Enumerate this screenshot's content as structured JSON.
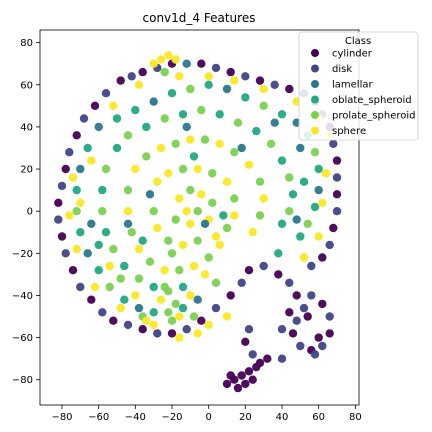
{
  "chart_data": {
    "type": "scatter",
    "title": "conv1d_4 Features",
    "xlabel": "",
    "ylabel": "",
    "xlim": [
      -92,
      82
    ],
    "ylim": [
      -92,
      86
    ],
    "xticks": [
      -80,
      -60,
      -40,
      -20,
      0,
      20,
      40,
      60,
      80
    ],
    "yticks": [
      -80,
      -60,
      -40,
      -20,
      0,
      20,
      40,
      60,
      80
    ],
    "grid": false,
    "legend": {
      "title": "Class",
      "placement": "top-right"
    },
    "series": [
      {
        "name": "cylinder",
        "color": "#440154"
      },
      {
        "name": "disk",
        "color": "#414487"
      },
      {
        "name": "lamellar",
        "color": "#2a788e"
      },
      {
        "name": "oblate_spheroid",
        "color": "#22a884"
      },
      {
        "name": "prolate_spheroid",
        "color": "#7ad151"
      },
      {
        "name": "sphere",
        "color": "#fde725"
      }
    ],
    "points": [
      [
        -48,
        62,
        0
      ],
      [
        -42,
        64,
        1
      ],
      [
        -36,
        66,
        0
      ],
      [
        -28,
        68,
        1
      ],
      [
        -20,
        70,
        0
      ],
      [
        -12,
        70,
        2
      ],
      [
        -4,
        70,
        0
      ],
      [
        4,
        68,
        1
      ],
      [
        12,
        66,
        0
      ],
      [
        20,
        64,
        1
      ],
      [
        28,
        62,
        0
      ],
      [
        36,
        60,
        1
      ],
      [
        44,
        58,
        0
      ],
      [
        52,
        56,
        1
      ],
      [
        58,
        52,
        0
      ],
      [
        62,
        46,
        1
      ],
      [
        66,
        40,
        0
      ],
      [
        68,
        32,
        1
      ],
      [
        70,
        24,
        0
      ],
      [
        70,
        16,
        1
      ],
      [
        70,
        8,
        0
      ],
      [
        70,
        0,
        1
      ],
      [
        68,
        -8,
        0
      ],
      [
        66,
        -16,
        1
      ],
      [
        62,
        -22,
        0
      ],
      [
        56,
        -26,
        1
      ],
      [
        -56,
        56,
        1
      ],
      [
        -62,
        50,
        0
      ],
      [
        -68,
        44,
        1
      ],
      [
        -72,
        36,
        0
      ],
      [
        -76,
        28,
        1
      ],
      [
        -78,
        20,
        0
      ],
      [
        -80,
        12,
        1
      ],
      [
        -82,
        4,
        0
      ],
      [
        -82,
        -4,
        1
      ],
      [
        -80,
        -12,
        0
      ],
      [
        -78,
        -20,
        1
      ],
      [
        -74,
        -28,
        0
      ],
      [
        -70,
        -36,
        1
      ],
      [
        -64,
        -42,
        0
      ],
      [
        -58,
        -48,
        1
      ],
      [
        -52,
        -52,
        0
      ],
      [
        -44,
        -54,
        1
      ],
      [
        -36,
        -56,
        0
      ],
      [
        -28,
        -58,
        1
      ],
      [
        -20,
        -58,
        0
      ],
      [
        -12,
        -56,
        1
      ],
      [
        -4,
        -52,
        0
      ],
      [
        4,
        -46,
        1
      ],
      [
        12,
        -40,
        0
      ],
      [
        18,
        -34,
        1
      ],
      [
        22,
        -28,
        0
      ],
      [
        30,
        -26,
        1
      ],
      [
        38,
        -30,
        0
      ],
      [
        44,
        -34,
        1
      ],
      [
        48,
        -40,
        0
      ],
      [
        56,
        -40,
        1
      ],
      [
        62,
        -44,
        0
      ],
      [
        66,
        -50,
        1
      ],
      [
        66,
        -58,
        0
      ],
      [
        62,
        -64,
        1
      ],
      [
        56,
        -66,
        0
      ],
      [
        50,
        -64,
        1
      ],
      [
        46,
        -58,
        0
      ],
      [
        48,
        -52,
        1
      ],
      [
        54,
        -50,
        0
      ],
      [
        40,
        -70,
        1
      ],
      [
        32,
        -70,
        0
      ],
      [
        24,
        -68,
        1
      ],
      [
        20,
        -62,
        0
      ],
      [
        22,
        -56,
        1
      ],
      [
        58,
        -68,
        1
      ],
      [
        60,
        -60,
        0
      ],
      [
        52,
        -46,
        1
      ],
      [
        44,
        -48,
        0
      ],
      [
        40,
        -56,
        1
      ],
      [
        10,
        -82,
        0
      ],
      [
        14,
        -80,
        0
      ],
      [
        18,
        -78,
        0
      ],
      [
        22,
        -76,
        0
      ],
      [
        26,
        -74,
        0
      ],
      [
        16,
        -84,
        0
      ],
      [
        12,
        -78,
        0
      ],
      [
        20,
        -82,
        0
      ],
      [
        28,
        -72,
        0
      ],
      [
        24,
        -80,
        0
      ],
      [
        -60,
        40,
        2
      ],
      [
        -50,
        44,
        3
      ],
      [
        -40,
        48,
        3
      ],
      [
        -30,
        52,
        2
      ],
      [
        -20,
        56,
        3
      ],
      [
        -10,
        58,
        4
      ],
      [
        0,
        60,
        3
      ],
      [
        10,
        58,
        2
      ],
      [
        20,
        54,
        3
      ],
      [
        30,
        50,
        4
      ],
      [
        40,
        46,
        3
      ],
      [
        48,
        42,
        2
      ],
      [
        54,
        36,
        3
      ],
      [
        58,
        28,
        4
      ],
      [
        60,
        20,
        3
      ],
      [
        60,
        10,
        2
      ],
      [
        58,
        2,
        3
      ],
      [
        54,
        -6,
        4
      ],
      [
        50,
        -12,
        3
      ],
      [
        -66,
        30,
        3
      ],
      [
        -70,
        20,
        2
      ],
      [
        -72,
        10,
        3
      ],
      [
        -72,
        0,
        4
      ],
      [
        -70,
        -10,
        3
      ],
      [
        -66,
        -20,
        2
      ],
      [
        -60,
        -28,
        3
      ],
      [
        -54,
        -36,
        4
      ],
      [
        -46,
        -42,
        3
      ],
      [
        -38,
        -46,
        2
      ],
      [
        -30,
        -48,
        3
      ],
      [
        -22,
        -48,
        4
      ],
      [
        -14,
        -46,
        3
      ],
      [
        -6,
        -42,
        2
      ],
      [
        -50,
        30,
        3
      ],
      [
        -44,
        36,
        4
      ],
      [
        -34,
        40,
        3
      ],
      [
        -24,
        44,
        4
      ],
      [
        -14,
        46,
        3
      ],
      [
        -4,
        48,
        4
      ],
      [
        6,
        46,
        3
      ],
      [
        16,
        42,
        4
      ],
      [
        26,
        38,
        3
      ],
      [
        34,
        32,
        4
      ],
      [
        40,
        24,
        3
      ],
      [
        44,
        16,
        4
      ],
      [
        46,
        8,
        3
      ],
      [
        44,
        0,
        4
      ],
      [
        40,
        -6,
        3
      ],
      [
        -56,
        20,
        4
      ],
      [
        -58,
        10,
        3
      ],
      [
        -58,
        0,
        4
      ],
      [
        -56,
        -10,
        3
      ],
      [
        -52,
        -18,
        4
      ],
      [
        -46,
        -26,
        3
      ],
      [
        -38,
        -32,
        4
      ],
      [
        -30,
        -36,
        3
      ],
      [
        -22,
        -38,
        4
      ],
      [
        -14,
        -36,
        3
      ],
      [
        -40,
        20,
        5
      ],
      [
        -34,
        26,
        4
      ],
      [
        -26,
        30,
        5
      ],
      [
        -18,
        32,
        4
      ],
      [
        -10,
        34,
        5
      ],
      [
        -2,
        34,
        4
      ],
      [
        6,
        32,
        5
      ],
      [
        14,
        28,
        4
      ],
      [
        22,
        22,
        5
      ],
      [
        28,
        14,
        4
      ],
      [
        30,
        6,
        5
      ],
      [
        28,
        -2,
        4
      ],
      [
        24,
        -10,
        5
      ],
      [
        -44,
        10,
        4
      ],
      [
        -44,
        0,
        5
      ],
      [
        -42,
        -10,
        4
      ],
      [
        -38,
        -18,
        5
      ],
      [
        -32,
        -24,
        4
      ],
      [
        -24,
        -28,
        5
      ],
      [
        -16,
        -28,
        4
      ],
      [
        -8,
        -26,
        5
      ],
      [
        0,
        -22,
        4
      ],
      [
        6,
        -16,
        5
      ],
      [
        -28,
        14,
        5
      ],
      [
        -22,
        18,
        5
      ],
      [
        -14,
        20,
        4
      ],
      [
        -6,
        20,
        5
      ],
      [
        2,
        18,
        4
      ],
      [
        10,
        14,
        5
      ],
      [
        14,
        6,
        4
      ],
      [
        14,
        -2,
        5
      ],
      [
        10,
        -8,
        4
      ],
      [
        4,
        -12,
        5
      ],
      [
        -30,
        0,
        4
      ],
      [
        -28,
        -8,
        5
      ],
      [
        -22,
        -14,
        4
      ],
      [
        -14,
        -16,
        5
      ],
      [
        -6,
        -14,
        4
      ],
      [
        -16,
        6,
        5
      ],
      [
        -10,
        10,
        4
      ],
      [
        -4,
        8,
        5
      ],
      [
        2,
        4,
        4
      ],
      [
        0,
        -4,
        5
      ],
      [
        -18,
        -4,
        4
      ],
      [
        -10,
        -6,
        5
      ],
      [
        -6,
        0,
        4
      ],
      [
        -12,
        0,
        5
      ],
      [
        -20,
        -20,
        4
      ],
      [
        -2,
        -30,
        5
      ],
      [
        4,
        -34,
        4
      ],
      [
        -10,
        -40,
        5
      ],
      [
        -18,
        -44,
        4
      ],
      [
        -26,
        -42,
        5
      ],
      [
        -24,
        -36,
        4
      ],
      [
        -16,
        -50,
        5
      ],
      [
        -8,
        -50,
        4
      ],
      [
        0,
        -54,
        5
      ],
      [
        -20,
        -52,
        4
      ],
      [
        -30,
        -54,
        5
      ],
      [
        -36,
        -50,
        4
      ],
      [
        -40,
        -40,
        5
      ],
      [
        -48,
        -32,
        4
      ],
      [
        -54,
        -26,
        5
      ],
      [
        -26,
        72,
        5
      ],
      [
        -22,
        74,
        5
      ],
      [
        -18,
        72,
        5
      ],
      [
        -30,
        70,
        5
      ],
      [
        -24,
        66,
        4
      ],
      [
        -16,
        64,
        5
      ],
      [
        0,
        64,
        5
      ],
      [
        14,
        62,
        5
      ],
      [
        30,
        58,
        5
      ],
      [
        48,
        52,
        5
      ],
      [
        60,
        44,
        5
      ],
      [
        66,
        36,
        5
      ],
      [
        64,
        18,
        5
      ],
      [
        62,
        4,
        5
      ],
      [
        60,
        -12,
        5
      ],
      [
        52,
        -22,
        5
      ],
      [
        -74,
        16,
        5
      ],
      [
        -76,
        -2,
        5
      ],
      [
        -72,
        -18,
        5
      ],
      [
        -62,
        -36,
        5
      ],
      [
        -48,
        -46,
        5
      ],
      [
        -34,
        -52,
        5
      ],
      [
        -16,
        -60,
        5
      ],
      [
        -6,
        -58,
        5
      ],
      [
        10,
        -50,
        5
      ],
      [
        -38,
        60,
        5
      ],
      [
        -52,
        50,
        5
      ],
      [
        -64,
        24,
        5
      ],
      [
        -70,
        4,
        5
      ],
      [
        -44,
        -6,
        2
      ],
      [
        -36,
        -14,
        3
      ],
      [
        -2,
        -6,
        2
      ],
      [
        8,
        -2,
        3
      ],
      [
        -32,
        8,
        2
      ],
      [
        -8,
        26,
        3
      ],
      [
        18,
        30,
        2
      ],
      [
        36,
        42,
        2
      ],
      [
        50,
        30,
        2
      ],
      [
        52,
        14,
        3
      ],
      [
        48,
        -4,
        2
      ],
      [
        38,
        -20,
        3
      ],
      [
        -64,
        -6,
        2
      ],
      [
        -60,
        -16,
        3
      ],
      [
        -12,
        40,
        2
      ]
    ]
  }
}
